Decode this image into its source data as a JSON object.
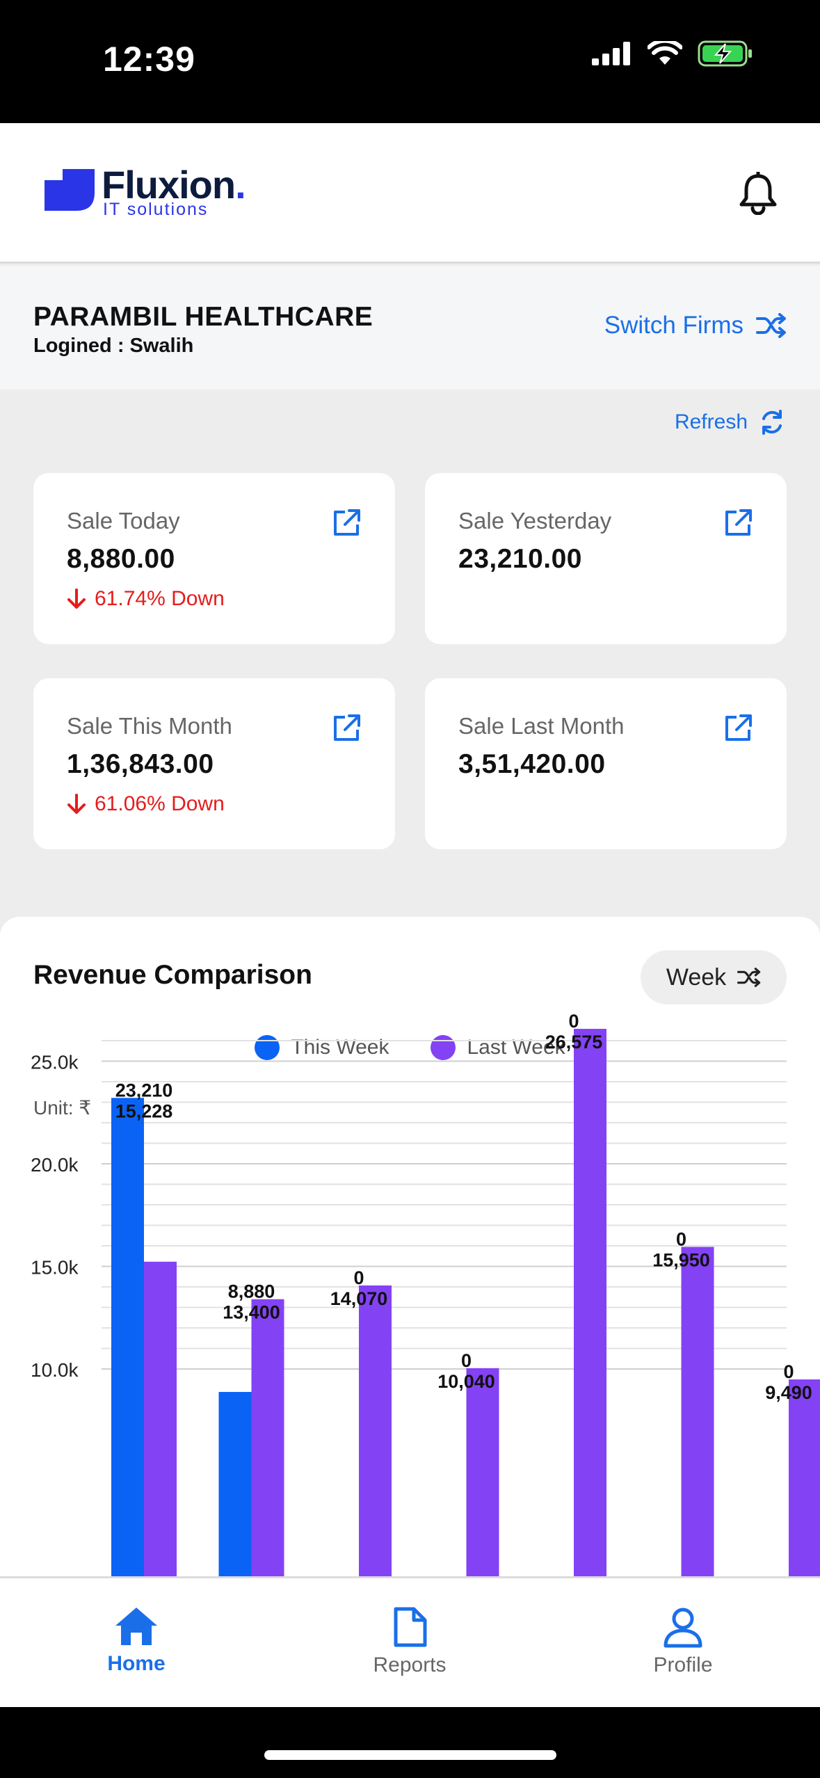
{
  "status": {
    "time": "12:39"
  },
  "brand": {
    "name": "Fluxion",
    "dot": ".",
    "tagline": "IT solutions"
  },
  "firm": {
    "name": "PARAMBIL HEALTHCARE",
    "login": "Logined : Swalih",
    "switch_label": "Switch Firms"
  },
  "refresh_label": "Refresh",
  "cards": [
    {
      "label": "Sale Today",
      "value": "8,880.00",
      "change": "61.74% Down"
    },
    {
      "label": "Sale Yesterday",
      "value": "23,210.00",
      "change": ""
    },
    {
      "label": "Sale This Month",
      "value": "1,36,843.00",
      "change": "61.06% Down"
    },
    {
      "label": "Sale Last Month",
      "value": "3,51,420.00",
      "change": ""
    }
  ],
  "revenue": {
    "title": "Revenue Comparison",
    "period_label": "Week",
    "unit_label": "Unit: ₹"
  },
  "colors": {
    "this_week": "#0a63f5",
    "last_week": "#8442f5",
    "down": "#e51c1c",
    "accent": "#1a6fe8"
  },
  "chart_data": {
    "type": "bar",
    "series": [
      {
        "name": "This Week",
        "values": [
          23210,
          8880,
          0,
          0,
          0,
          0,
          0
        ]
      },
      {
        "name": "Last Week",
        "values": [
          15228,
          13400,
          14070,
          10040,
          26575,
          15950,
          9490
        ]
      }
    ],
    "labels": {
      "this_week": [
        "23,210",
        "8,880",
        "0",
        "0",
        "0",
        "0",
        "0"
      ],
      "last_week": [
        "15,228",
        "13,400",
        "14,070",
        "10,040",
        "26,575",
        "15,950",
        "9,490"
      ]
    },
    "y_ticks": [
      "25.0k",
      "20.0k",
      "15.0k",
      "10.0k"
    ],
    "y_tick_values": [
      25000,
      20000,
      15000,
      10000
    ],
    "grid": true,
    "legend": "top-center"
  },
  "nav": [
    {
      "label": "Home",
      "icon": "home-icon"
    },
    {
      "label": "Reports",
      "icon": "document-icon"
    },
    {
      "label": "Profile",
      "icon": "user-icon"
    }
  ]
}
